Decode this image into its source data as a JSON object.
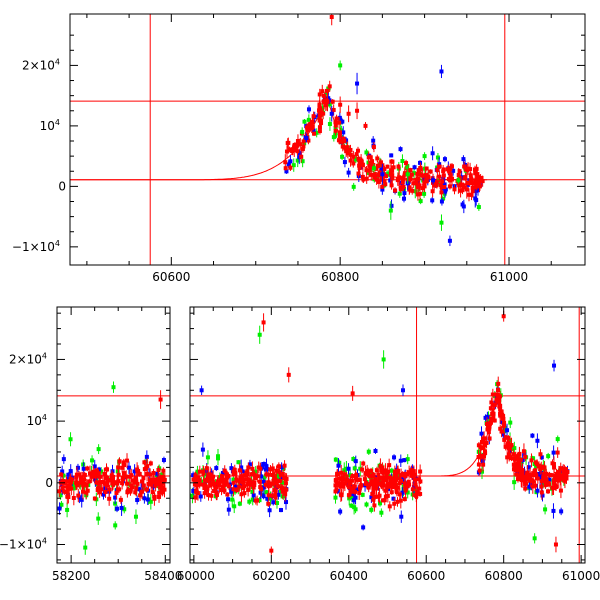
{
  "chart_data": [
    {
      "type": "scatter",
      "title": "",
      "xlabel": "",
      "ylabel": "",
      "xlim": [
        60480,
        61090
      ],
      "ylim": [
        -13000,
        28500
      ],
      "x_ticks": [
        60600,
        60800,
        61000
      ],
      "y_ticks": [
        {
          "value": -10000,
          "label": "−1×10",
          "exp": "4"
        },
        {
          "value": 0,
          "label": "0",
          "exp": ""
        },
        {
          "value": 10000,
          "label": "10",
          "exp": "4"
        },
        {
          "value": 20000,
          "label": "2×10",
          "exp": "4"
        }
      ],
      "reference_lines": {
        "horizontal": [
          14100,
          1100
        ],
        "vertical": [
          60575,
          60995
        ]
      },
      "model_curve": {
        "description": "rising exponential from baseline to peak then declining",
        "baseline": 1100,
        "peak_x": 60785,
        "peak_y": 14800,
        "rise_start": 60600,
        "decline_end": 60860
      },
      "series": [
        {
          "name": "red",
          "color": "#ff0000",
          "x": [
            60735,
            60750,
            60765,
            60775,
            60785,
            60790,
            60800,
            60810,
            60820,
            60830,
            60840,
            60850,
            60860,
            60870,
            60880,
            60890,
            60900,
            60910,
            60920,
            60930,
            60940,
            60950,
            60960,
            60965
          ],
          "y": [
            4000,
            7500,
            10000,
            12500,
            14000,
            28000,
            13500,
            12000,
            12500,
            10000,
            6500,
            3500,
            2000,
            1500,
            1000,
            500,
            0,
            1000,
            -1000,
            0,
            500,
            -500,
            1000,
            500
          ]
        },
        {
          "name": "blue",
          "color": "#0000ff",
          "x": [
            60760,
            60790,
            60820,
            60850,
            60880,
            60910,
            60920,
            60930,
            60945,
            60960
          ],
          "y": [
            8000,
            12000,
            17000,
            2000,
            500,
            1000,
            19000,
            -9000,
            -3000,
            -2000
          ]
        },
        {
          "name": "green",
          "color": "#00ee00",
          "x": [
            60755,
            60800,
            60840,
            60860,
            60880,
            60900,
            60920,
            60940
          ],
          "y": [
            9000,
            20000,
            3000,
            -4000,
            2000,
            5000,
            -6000,
            1000
          ]
        }
      ]
    },
    {
      "type": "scatter",
      "title": "",
      "xlabel": "",
      "ylabel": "",
      "x_segments": [
        [
          58170,
          58410
        ],
        [
          59990,
          61010
        ]
      ],
      "ylim": [
        -13000,
        28500
      ],
      "x_ticks": [
        {
          "value": 58200,
          "segment": 0
        },
        {
          "value": 58400,
          "segment": 0
        },
        {
          "value": 60000,
          "segment": 1
        },
        {
          "value": 60200,
          "segment": 1
        },
        {
          "value": 60400,
          "segment": 1
        },
        {
          "value": 60600,
          "segment": 1
        },
        {
          "value": 60800,
          "segment": 1
        },
        {
          "value": 61000,
          "segment": 1
        }
      ],
      "y_ticks": [
        {
          "value": -10000,
          "label": "−1×10",
          "exp": "4"
        },
        {
          "value": 0,
          "label": "0",
          "exp": ""
        },
        {
          "value": 10000,
          "label": "10",
          "exp": "4"
        },
        {
          "value": 20000,
          "label": "2×10",
          "exp": "4"
        }
      ],
      "reference_lines": {
        "horizontal": [
          14100,
          1100
        ],
        "vertical": [
          60575,
          60995
        ]
      },
      "seasons": [
        {
          "start": 58175,
          "end": 58400
        },
        {
          "start": 59995,
          "end": 60240
        },
        {
          "start": 60365,
          "end": 60585
        },
        {
          "start": 60735,
          "end": 60965
        }
      ],
      "outliers": [
        {
          "series": "red",
          "x": 60180,
          "y": 26000
        },
        {
          "series": "green",
          "x": 60170,
          "y": 24000
        },
        {
          "series": "red",
          "x": 60245,
          "y": 17500
        },
        {
          "series": "blue",
          "x": 60020,
          "y": 15000
        },
        {
          "series": "green",
          "x": 58290,
          "y": 15500
        },
        {
          "series": "red",
          "x": 58390,
          "y": 13500
        },
        {
          "series": "green",
          "x": 60490,
          "y": 20000
        },
        {
          "series": "red",
          "x": 60410,
          "y": 14500
        },
        {
          "series": "blue",
          "x": 60540,
          "y": 15000
        },
        {
          "series": "blue",
          "x": 60930,
          "y": 19000
        },
        {
          "series": "red",
          "x": 60800,
          "y": 27000
        },
        {
          "series": "green",
          "x": 58230,
          "y": -10500
        },
        {
          "series": "red",
          "x": 60200,
          "y": -11000
        },
        {
          "series": "green",
          "x": 60880,
          "y": -9000
        },
        {
          "series": "red",
          "x": 60935,
          "y": -10000
        }
      ]
    }
  ]
}
